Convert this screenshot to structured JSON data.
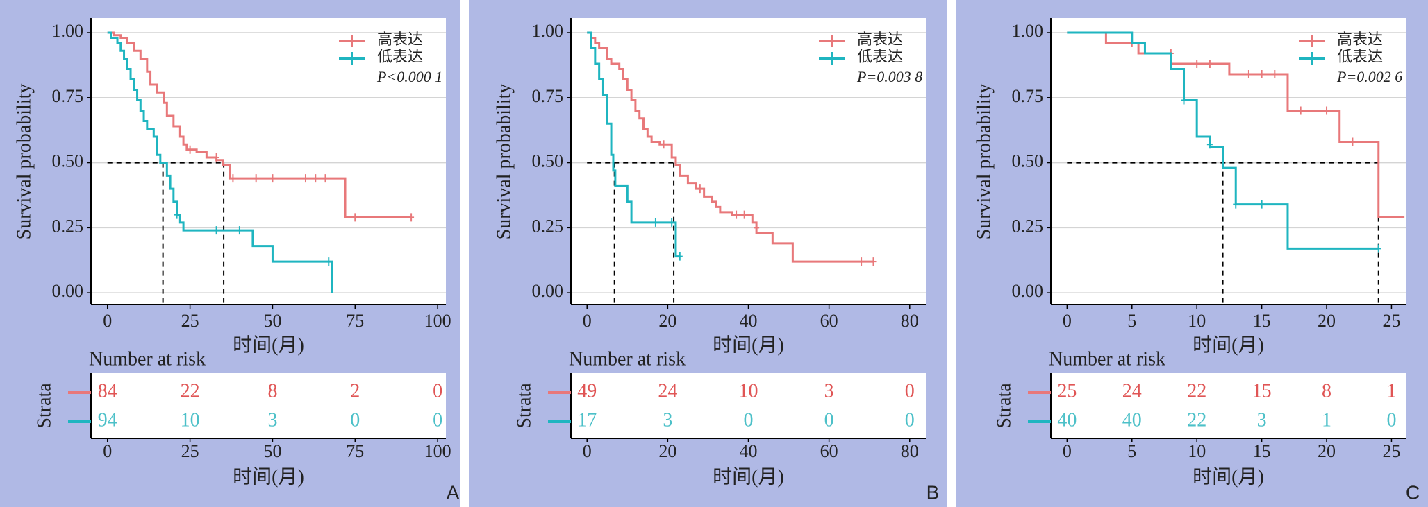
{
  "chart_data": [
    {
      "type": "line",
      "step": true,
      "panel_label": "A",
      "xlabel": "时间(月)",
      "ylabel": "Survival probability",
      "xlim": [
        -5,
        102.5
      ],
      "ylim": [
        -0.045,
        1.056
      ],
      "xticks": [
        0,
        25,
        50,
        75,
        100
      ],
      "yticks": [
        {
          "value": 0,
          "label": "0.00"
        },
        {
          "value": 0.25,
          "label": "0.25"
        },
        {
          "value": 0.5,
          "label": "0.50"
        },
        {
          "value": 0.75,
          "label": "0.75"
        },
        {
          "value": 1,
          "label": "1.00"
        }
      ],
      "grid": true,
      "legend": "upper right",
      "annotation": "P<0.000 1",
      "median_level": 0.5,
      "medians": [
        16.8,
        35.2
      ],
      "series": [
        {
          "name": "高表达",
          "color": "#e8787a",
          "x": [
            0,
            2,
            4,
            6,
            8,
            10,
            12,
            13,
            15,
            17,
            18,
            20,
            22,
            23,
            24,
            27,
            30,
            33,
            35,
            37,
            72,
            92
          ],
          "values": [
            1,
            0.99,
            0.98,
            0.96,
            0.93,
            0.9,
            0.85,
            0.8,
            0.77,
            0.73,
            0.68,
            0.64,
            0.6,
            0.57,
            0.55,
            0.54,
            0.52,
            0.51,
            0.49,
            0.44,
            0.29,
            0.29
          ],
          "censor_x": [
            25,
            33,
            38,
            45,
            50,
            60,
            63,
            66,
            75,
            92
          ],
          "censor_values": [
            0.55,
            0.52,
            0.44,
            0.44,
            0.44,
            0.44,
            0.44,
            0.44,
            0.29,
            0.29
          ]
        },
        {
          "name": "低表达",
          "color": "#1fb5c0",
          "x": [
            0,
            1,
            3,
            4,
            5,
            6,
            7,
            8,
            9,
            10,
            11,
            12,
            14,
            15,
            16,
            18,
            19,
            20,
            21,
            22,
            23,
            44,
            50,
            68
          ],
          "values": [
            1,
            0.98,
            0.96,
            0.93,
            0.9,
            0.86,
            0.82,
            0.78,
            0.74,
            0.7,
            0.66,
            0.63,
            0.6,
            0.53,
            0.5,
            0.45,
            0.4,
            0.35,
            0.3,
            0.27,
            0.24,
            0.18,
            0.12,
            0
          ],
          "censor_x": [
            21,
            33,
            40,
            67
          ],
          "censor_values": [
            0.3,
            0.24,
            0.24,
            0.12
          ]
        }
      ],
      "risk_table": {
        "title": "Number at risk",
        "ylabel": "Strata",
        "values": [
          [
            84,
            22,
            8,
            2,
            0
          ],
          [
            94,
            10,
            3,
            0,
            0
          ]
        ]
      }
    },
    {
      "type": "line",
      "step": true,
      "panel_label": "B",
      "xlabel": "时间(月)",
      "ylabel": "Survival probability",
      "xlim": [
        -4,
        84
      ],
      "ylim": [
        -0.045,
        1.056
      ],
      "xticks": [
        0,
        20,
        40,
        60,
        80
      ],
      "yticks": [
        {
          "value": 0,
          "label": "0.00"
        },
        {
          "value": 0.25,
          "label": "0.25"
        },
        {
          "value": 0.5,
          "label": "0.50"
        },
        {
          "value": 0.75,
          "label": "0.75"
        },
        {
          "value": 1,
          "label": "1.00"
        }
      ],
      "grid": true,
      "legend": "upper right",
      "annotation": "P=0.003 8",
      "median_level": 0.5,
      "medians": [
        6.8,
        21.5
      ],
      "series": [
        {
          "name": "高表达",
          "color": "#e8787a",
          "x": [
            0,
            1,
            2,
            3,
            5,
            6,
            8,
            9,
            10,
            11,
            12,
            13,
            14,
            15,
            16,
            18,
            21,
            22,
            23,
            25,
            27,
            29,
            31,
            32,
            33,
            36,
            41,
            42,
            46,
            51,
            71
          ],
          "values": [
            1,
            0.98,
            0.96,
            0.94,
            0.9,
            0.88,
            0.86,
            0.82,
            0.78,
            0.74,
            0.7,
            0.67,
            0.63,
            0.6,
            0.58,
            0.57,
            0.52,
            0.49,
            0.45,
            0.42,
            0.4,
            0.37,
            0.35,
            0.33,
            0.31,
            0.3,
            0.27,
            0.23,
            0.19,
            0.12,
            0.12
          ],
          "censor_x": [
            19,
            28,
            37,
            39,
            42,
            68,
            71
          ],
          "censor_values": [
            0.57,
            0.4,
            0.3,
            0.3,
            0.25,
            0.12,
            0.12
          ]
        },
        {
          "name": "低表达",
          "color": "#1fb5c0",
          "x": [
            0,
            1,
            2,
            3,
            4,
            5,
            6,
            6.5,
            7,
            10,
            11,
            22,
            23
          ],
          "values": [
            1,
            0.94,
            0.88,
            0.82,
            0.76,
            0.65,
            0.53,
            0.47,
            0.41,
            0.35,
            0.27,
            0.14,
            0.14
          ],
          "censor_x": [
            17,
            21,
            23
          ],
          "censor_values": [
            0.27,
            0.27,
            0.14
          ]
        }
      ],
      "risk_table": {
        "title": "Number at risk",
        "ylabel": "Strata",
        "values": [
          [
            49,
            24,
            10,
            3,
            0
          ],
          [
            17,
            3,
            0,
            0,
            0
          ]
        ]
      }
    },
    {
      "type": "line",
      "step": true,
      "panel_label": "C",
      "xlabel": "时间(月)",
      "ylabel": "Survival probability",
      "xlim": [
        -1.25,
        26.1
      ],
      "ylim": [
        -0.045,
        1.056
      ],
      "xticks": [
        0,
        5,
        10,
        15,
        20,
        25
      ],
      "yticks": [
        {
          "value": 0,
          "label": "0.00"
        },
        {
          "value": 0.25,
          "label": "0.25"
        },
        {
          "value": 0.5,
          "label": "0.50"
        },
        {
          "value": 0.75,
          "label": "0.75"
        },
        {
          "value": 1,
          "label": "1.00"
        }
      ],
      "grid": true,
      "legend": "upper right",
      "annotation": "P=0.002 6",
      "median_level": 0.5,
      "medians": [
        12,
        24
      ],
      "series": [
        {
          "name": "高表达",
          "color": "#e8787a",
          "x": [
            0,
            3,
            5.5,
            8,
            12.5,
            17,
            21,
            24,
            26
          ],
          "values": [
            1,
            0.96,
            0.92,
            0.88,
            0.84,
            0.7,
            0.58,
            0.29,
            0.29
          ],
          "censor_x": [
            5,
            8,
            10,
            11,
            14,
            15,
            16,
            18,
            20,
            22
          ],
          "censor_values": [
            0.96,
            0.92,
            0.88,
            0.88,
            0.84,
            0.84,
            0.84,
            0.7,
            0.7,
            0.58
          ]
        },
        {
          "name": "低表达",
          "color": "#1fb5c0",
          "x": [
            0,
            5,
            6,
            8,
            9,
            10,
            11,
            12,
            13,
            17,
            24
          ],
          "values": [
            1,
            0.96,
            0.92,
            0.86,
            0.74,
            0.6,
            0.56,
            0.48,
            0.34,
            0.17,
            0.17
          ],
          "censor_x": [
            9,
            11,
            13,
            15,
            24
          ],
          "censor_values": [
            0.74,
            0.57,
            0.34,
            0.34,
            0.17
          ]
        }
      ],
      "risk_table": {
        "title": "Number at risk",
        "ylabel": "Strata",
        "values": [
          [
            25,
            24,
            22,
            15,
            8,
            1
          ],
          [
            40,
            40,
            22,
            3,
            1,
            0
          ]
        ]
      }
    }
  ]
}
